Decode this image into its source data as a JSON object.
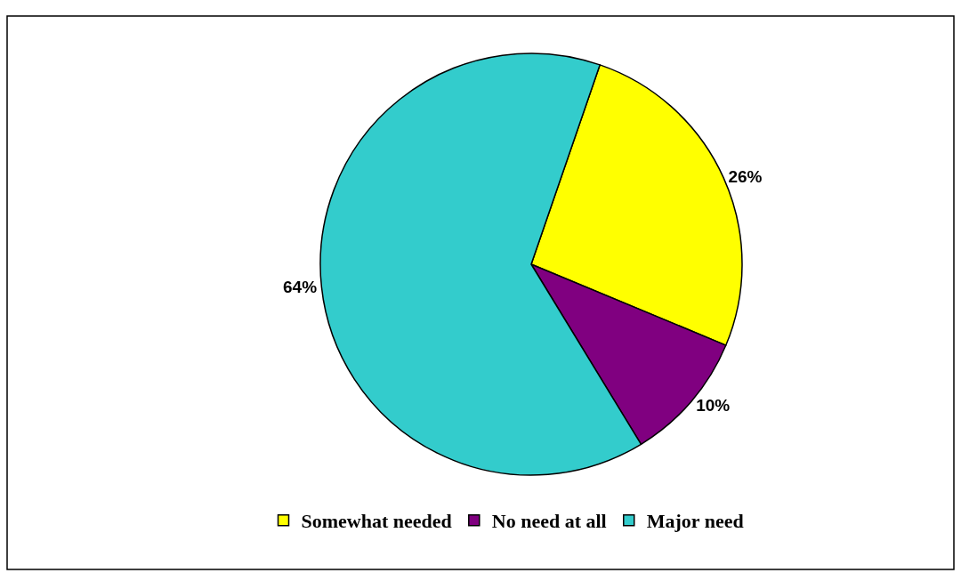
{
  "chart_data": {
    "type": "pie",
    "categories": [
      "Somewhat needed",
      "No need at all",
      "Major need"
    ],
    "values": [
      26,
      10,
      64
    ],
    "colors": [
      "#ffff00",
      "#800080",
      "#33cccc"
    ],
    "value_labels": [
      "26%",
      "10%",
      "64%"
    ],
    "legend": "bottom"
  }
}
